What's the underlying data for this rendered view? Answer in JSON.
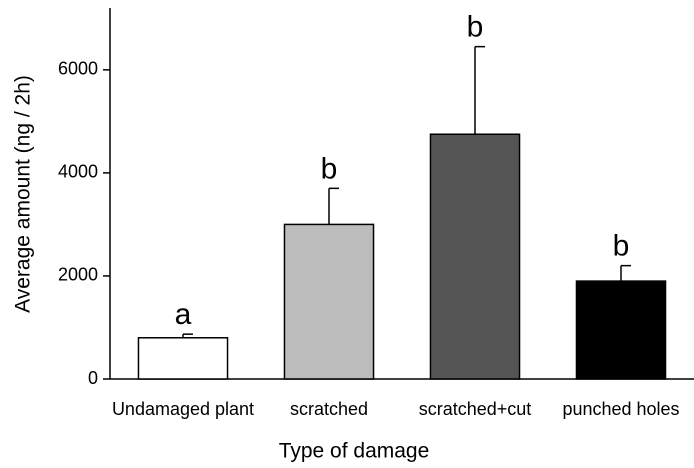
{
  "chart_data": {
    "type": "bar",
    "xlabel": "Type of damage",
    "ylabel": "Average amount (ng / 2h)",
    "categories": [
      "Undamaged plant",
      "scratched",
      "scratched+cut",
      "punched holes"
    ],
    "values": [
      800,
      3000,
      4750,
      1900
    ],
    "errors": [
      70,
      700,
      1700,
      300
    ],
    "annotations": [
      "a",
      "b",
      "b",
      "b"
    ],
    "colors": [
      "#ffffff",
      "#bcbcbc",
      "#555555",
      "#000000"
    ],
    "ylim": [
      0,
      7200
    ],
    "yticks": [
      0,
      2000,
      4000,
      6000
    ],
    "grid": false
  }
}
